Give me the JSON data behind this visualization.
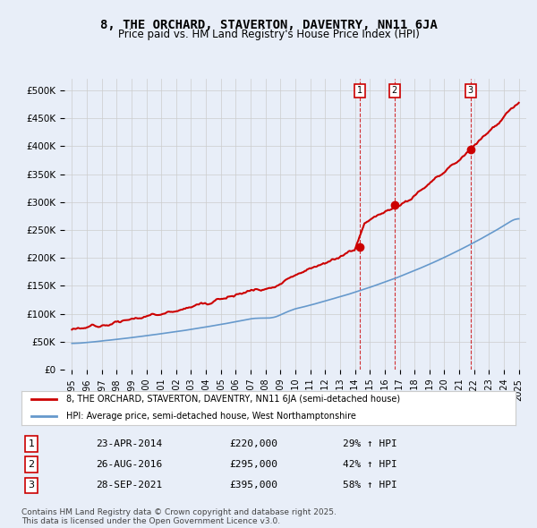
{
  "title": "8, THE ORCHARD, STAVERTON, DAVENTRY, NN11 6JA",
  "subtitle": "Price paid vs. HM Land Registry's House Price Index (HPI)",
  "legend_red": "8, THE ORCHARD, STAVERTON, DAVENTRY, NN11 6JA (semi-detached house)",
  "legend_blue": "HPI: Average price, semi-detached house, West Northamptonshire",
  "copyright": "Contains HM Land Registry data © Crown copyright and database right 2025.\nThis data is licensed under the Open Government Licence v3.0.",
  "sales": [
    {
      "num": 1,
      "date": "23-APR-2014",
      "price": 220000,
      "hpi_pct": 29,
      "year": 2014.3
    },
    {
      "num": 2,
      "date": "26-AUG-2016",
      "price": 295000,
      "hpi_pct": 42,
      "year": 2016.65
    },
    {
      "num": 3,
      "date": "28-SEP-2021",
      "price": 395000,
      "hpi_pct": 58,
      "year": 2021.75
    }
  ],
  "ylim": [
    0,
    520000
  ],
  "xlim": [
    1994.5,
    2025.5
  ],
  "yticks": [
    0,
    50000,
    100000,
    150000,
    200000,
    250000,
    300000,
    350000,
    400000,
    450000,
    500000
  ],
  "ytick_labels": [
    "£0",
    "£50K",
    "£100K",
    "£150K",
    "£200K",
    "£250K",
    "£300K",
    "£350K",
    "£400K",
    "£450K",
    "£500K"
  ],
  "background_color": "#e8eef8",
  "plot_bg": "#ffffff",
  "red_color": "#cc0000",
  "blue_color": "#6699cc"
}
